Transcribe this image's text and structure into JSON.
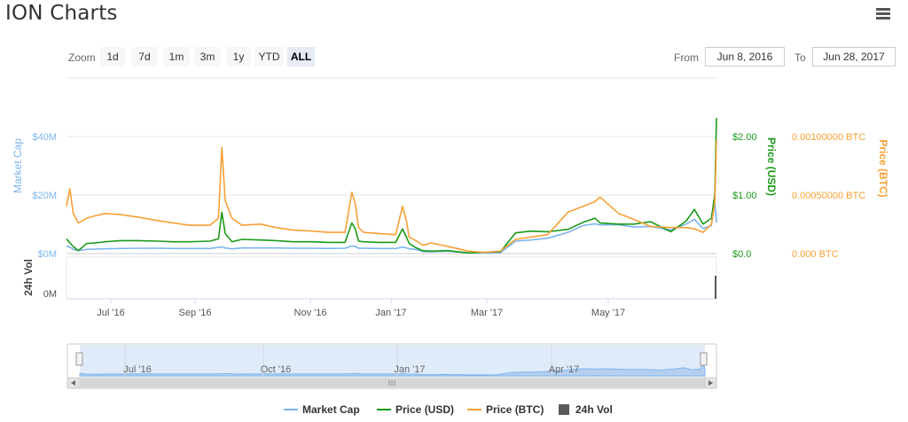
{
  "header": {
    "title": "ION Charts"
  },
  "toolbar": {
    "zoom_label": "Zoom",
    "zoom_buttons": [
      "1d",
      "7d",
      "1m",
      "3m",
      "1y",
      "YTD",
      "ALL"
    ],
    "active_zoom": "ALL",
    "from_label": "From",
    "from_value": "Jun 8, 2016",
    "to_label": "To",
    "to_value": "Jun 28, 2017"
  },
  "colors": {
    "market_cap": "#7cb5ec",
    "price_usd": "#1a9a1a",
    "price_btc": "#f7a035",
    "volume": "#5a5a5a"
  },
  "chart_data": {
    "type": "line",
    "x": [
      "2016-06-08",
      "2016-06-10",
      "2016-06-12",
      "2016-06-15",
      "2016-06-20",
      "2016-06-25",
      "2016-07-01",
      "2016-07-10",
      "2016-07-20",
      "2016-08-01",
      "2016-08-10",
      "2016-08-20",
      "2016-09-01",
      "2016-09-06",
      "2016-09-08",
      "2016-09-10",
      "2016-09-14",
      "2016-09-20",
      "2016-10-01",
      "2016-10-10",
      "2016-10-20",
      "2016-11-01",
      "2016-11-10",
      "2016-11-20",
      "2016-11-24",
      "2016-11-26",
      "2016-11-28",
      "2016-12-01",
      "2016-12-10",
      "2016-12-20",
      "2016-12-24",
      "2016-12-26",
      "2016-12-28",
      "2017-01-01",
      "2017-01-05",
      "2017-01-10",
      "2017-01-20",
      "2017-02-01",
      "2017-02-10",
      "2017-02-20",
      "2017-03-01",
      "2017-03-10",
      "2017-03-20",
      "2017-04-01",
      "2017-04-10",
      "2017-04-17",
      "2017-04-20",
      "2017-05-01",
      "2017-05-10",
      "2017-05-20",
      "2017-06-01",
      "2017-06-10",
      "2017-06-15",
      "2017-06-20",
      "2017-06-25",
      "2017-06-27",
      "2017-06-28"
    ],
    "series": [
      {
        "name": "Market Cap",
        "axis": "market_cap",
        "values": [
          2.5,
          2.2,
          1.4,
          1.0,
          1.4,
          1.5,
          1.6,
          1.7,
          1.8,
          1.8,
          1.7,
          1.7,
          1.7,
          2.1,
          2.3,
          1.9,
          1.6,
          1.9,
          1.9,
          1.9,
          1.8,
          1.8,
          1.7,
          1.8,
          2.6,
          2.4,
          1.8,
          1.8,
          1.7,
          1.7,
          2.2,
          2.0,
          1.6,
          1.4,
          0.7,
          0.6,
          0.8,
          0.2,
          0.2,
          0.3,
          4.2,
          4.6,
          5.2,
          7.2,
          9.5,
          10.1,
          9.7,
          9.8,
          9.0,
          9.2,
          8.0,
          10.0,
          11.6,
          8.5,
          9.5,
          17.5,
          10.5
        ]
      },
      {
        "name": "Price (USD)",
        "axis": "price_usd",
        "values": [
          0.25,
          0.18,
          0.12,
          0.05,
          0.17,
          0.18,
          0.2,
          0.22,
          0.22,
          0.21,
          0.2,
          0.2,
          0.21,
          0.25,
          0.7,
          0.34,
          0.2,
          0.24,
          0.23,
          0.22,
          0.2,
          0.2,
          0.19,
          0.19,
          0.52,
          0.42,
          0.21,
          0.2,
          0.19,
          0.19,
          0.42,
          0.3,
          0.17,
          0.1,
          0.05,
          0.04,
          0.05,
          0.01,
          0.02,
          0.03,
          0.35,
          0.38,
          0.37,
          0.41,
          0.53,
          0.6,
          0.52,
          0.5,
          0.5,
          0.54,
          0.37,
          0.55,
          0.75,
          0.5,
          0.6,
          1.0,
          2.3
        ]
      },
      {
        "name": "Price (BTC)",
        "axis": "price_btc",
        "values": [
          0.0004,
          0.00055,
          0.00034,
          0.00026,
          0.0003,
          0.00032,
          0.00034,
          0.00033,
          0.00031,
          0.00028,
          0.00026,
          0.00024,
          0.00024,
          0.0003,
          0.0009,
          0.00045,
          0.0003,
          0.00024,
          0.00025,
          0.00022,
          0.0002,
          0.00019,
          0.00018,
          0.00018,
          0.00052,
          0.00042,
          0.00022,
          0.00018,
          0.00017,
          0.00016,
          0.0004,
          0.0003,
          0.00014,
          0.00011,
          7e-05,
          9e-05,
          6e-05,
          2e-05,
          1e-05,
          2e-05,
          0.00012,
          0.00014,
          0.00016,
          0.00035,
          0.0004,
          0.00044,
          0.00048,
          0.00034,
          0.00029,
          0.00023,
          0.00022,
          0.00022,
          0.00021,
          0.00018,
          0.00025,
          0.00043,
          0.00096
        ]
      },
      {
        "name": "24h Vol",
        "axis": "volume",
        "values": [
          0,
          0,
          0,
          0,
          0,
          0,
          0,
          0,
          0,
          0,
          0,
          0,
          0,
          0,
          0,
          0,
          0,
          0,
          0,
          0,
          0,
          0,
          0,
          0,
          0,
          0,
          0,
          0,
          0,
          0,
          0,
          0,
          0,
          0,
          0,
          0,
          0,
          0,
          0,
          0,
          0,
          0,
          0,
          0,
          0,
          0,
          0,
          0,
          0,
          0,
          0,
          0,
          0,
          0,
          0,
          0,
          1
        ]
      }
    ],
    "axes": {
      "market_cap": {
        "label": "Market Cap",
        "ticks": [
          "$0M",
          "$20M",
          "$40M"
        ],
        "range": [
          0,
          40
        ]
      },
      "price_usd": {
        "label": "Price (USD)",
        "ticks": [
          "$0.0",
          "$1.00",
          "$2.00"
        ],
        "range": [
          0,
          2
        ]
      },
      "price_btc": {
        "label": "Price (BTC)",
        "ticks": [
          "0.000 BTC",
          "0.00050000 BTC",
          "0.00100000 BTC"
        ],
        "range": [
          0,
          0.001
        ]
      },
      "volume": {
        "label": "24h Vol",
        "ticks": [
          "0M"
        ]
      },
      "x_ticks": [
        "Jul '16",
        "Sep '16",
        "Nov '16",
        "Jan '17",
        "Mar '17",
        "May '17"
      ]
    },
    "navigator": {
      "ticks": [
        "Jul '16",
        "Oct '16",
        "Jan '17",
        "Apr '17"
      ]
    },
    "legend": [
      "Market Cap",
      "Price (USD)",
      "Price (BTC)",
      "24h Vol"
    ],
    "legend_position": "bottom-center",
    "grid": true
  }
}
